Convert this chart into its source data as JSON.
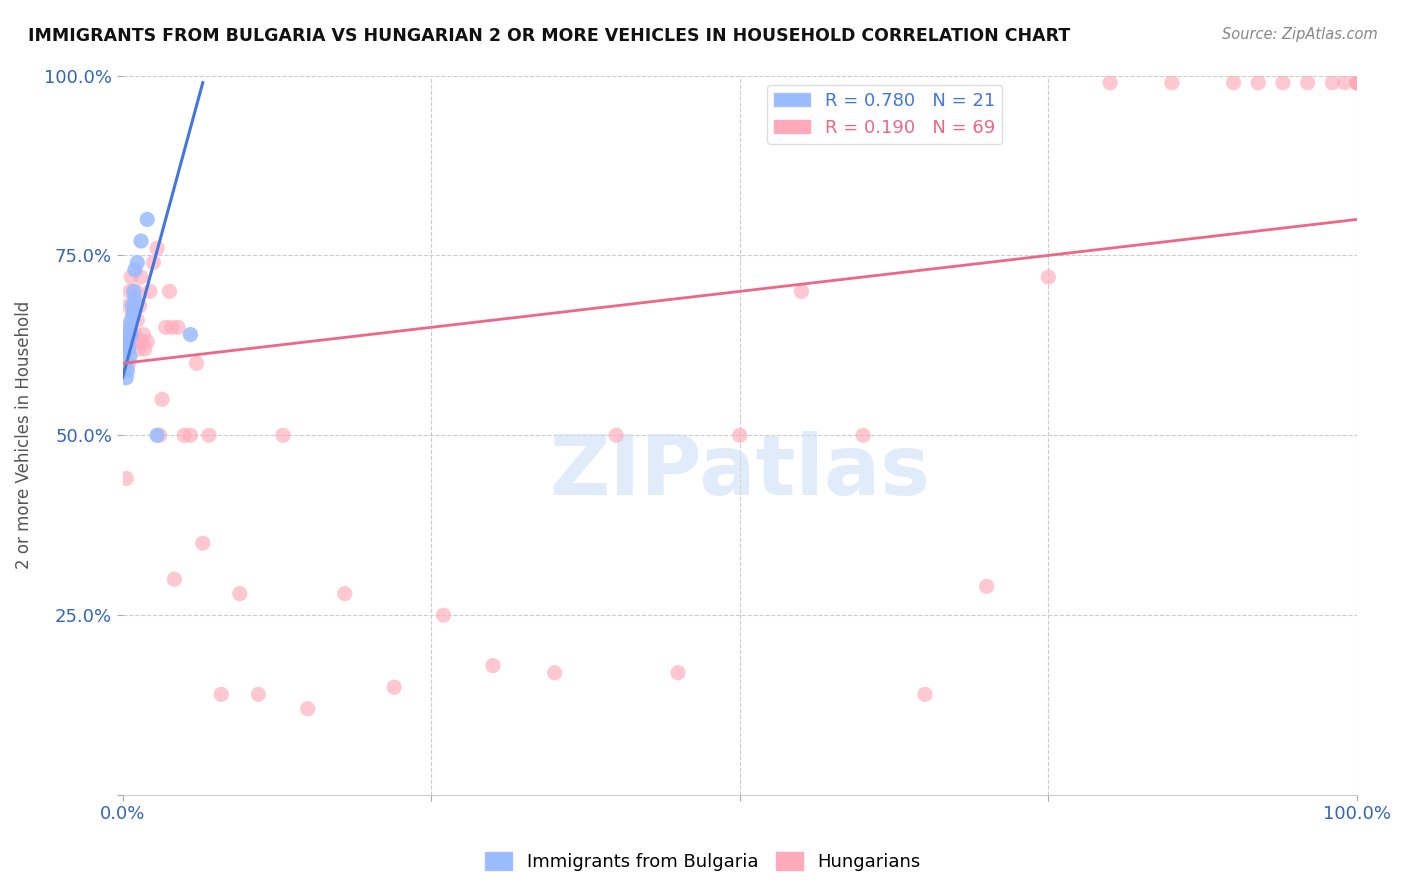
{
  "title": "IMMIGRANTS FROM BULGARIA VS HUNGARIAN 2 OR MORE VEHICLES IN HOUSEHOLD CORRELATION CHART",
  "source": "Source: ZipAtlas.com",
  "ylabel": "2 or more Vehicles in Household",
  "bg_color": "#ffffff",
  "grid_color": "#cccccc",
  "blue_color": "#99bbff",
  "pink_color": "#ffaabb",
  "blue_line_color": "#4477dd",
  "pink_line_color": "#ee6688",
  "R_blue": 0.78,
  "N_blue": 21,
  "R_pink": 0.19,
  "N_pink": 69,
  "watermark_text": "ZIPatlas",
  "xlim": [
    0.0,
    1.0
  ],
  "ylim": [
    0.0,
    1.0
  ],
  "blue_x": [
    0.002,
    0.003,
    0.003,
    0.004,
    0.004,
    0.005,
    0.005,
    0.006,
    0.006,
    0.007,
    0.007,
    0.008,
    0.009,
    0.009,
    0.01,
    0.01,
    0.012,
    0.015,
    0.02,
    0.028,
    0.055
  ],
  "blue_y": [
    0.62,
    0.6,
    0.58,
    0.64,
    0.59,
    0.63,
    0.62,
    0.65,
    0.61,
    0.66,
    0.64,
    0.68,
    0.7,
    0.67,
    0.73,
    0.69,
    0.74,
    0.77,
    0.8,
    0.5,
    0.64
  ],
  "pink_x": [
    0.002,
    0.003,
    0.003,
    0.004,
    0.005,
    0.005,
    0.006,
    0.006,
    0.007,
    0.007,
    0.008,
    0.009,
    0.01,
    0.01,
    0.011,
    0.012,
    0.013,
    0.014,
    0.015,
    0.015,
    0.017,
    0.018,
    0.02,
    0.022,
    0.025,
    0.028,
    0.03,
    0.032,
    0.035,
    0.038,
    0.04,
    0.042,
    0.045,
    0.05,
    0.055,
    0.06,
    0.065,
    0.07,
    0.08,
    0.095,
    0.11,
    0.13,
    0.15,
    0.18,
    0.22,
    0.26,
    0.3,
    0.35,
    0.4,
    0.45,
    0.5,
    0.55,
    0.6,
    0.65,
    0.7,
    0.75,
    0.8,
    0.85,
    0.9,
    0.92,
    0.94,
    0.96,
    0.98,
    0.99,
    1.0,
    1.0,
    1.0,
    1.0,
    1.0
  ],
  "pink_y": [
    0.63,
    0.65,
    0.44,
    0.62,
    0.68,
    0.6,
    0.7,
    0.64,
    0.72,
    0.63,
    0.67,
    0.63,
    0.68,
    0.64,
    0.7,
    0.66,
    0.62,
    0.68,
    0.63,
    0.72,
    0.64,
    0.62,
    0.63,
    0.7,
    0.74,
    0.76,
    0.5,
    0.55,
    0.65,
    0.7,
    0.65,
    0.3,
    0.65,
    0.5,
    0.5,
    0.6,
    0.35,
    0.5,
    0.14,
    0.28,
    0.14,
    0.5,
    0.12,
    0.28,
    0.15,
    0.25,
    0.18,
    0.17,
    0.5,
    0.17,
    0.5,
    0.7,
    0.5,
    0.14,
    0.29,
    0.72,
    0.99,
    0.99,
    0.99,
    0.99,
    0.99,
    0.99,
    0.99,
    0.99,
    0.99,
    0.99,
    0.99,
    0.99,
    0.99
  ]
}
